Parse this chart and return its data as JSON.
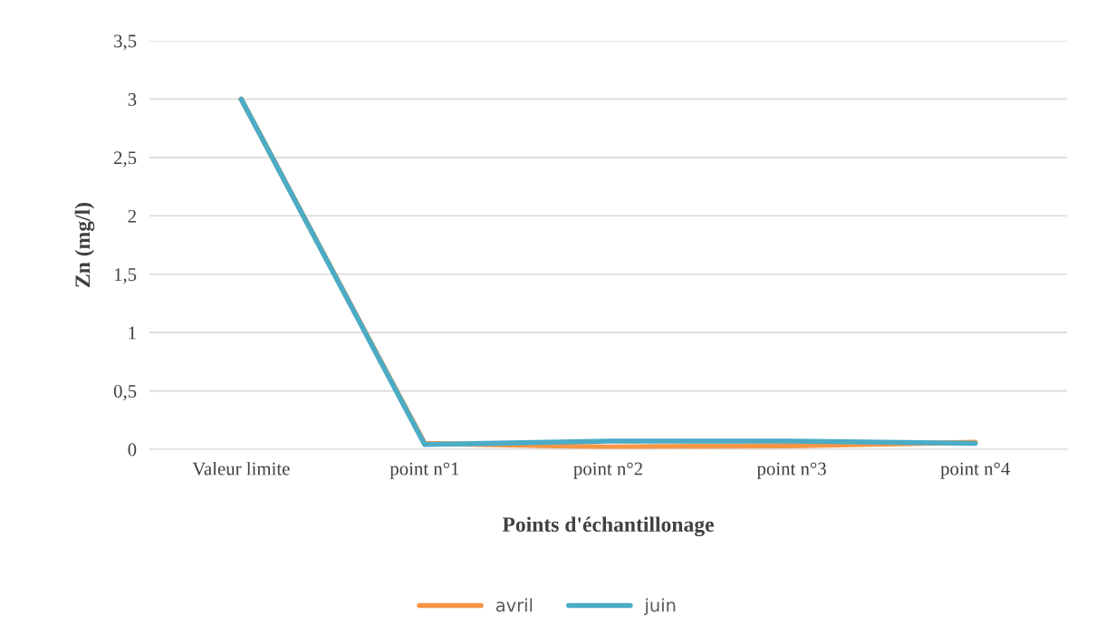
{
  "chart_data": {
    "type": "line",
    "xlabel": "Points d'échantillonage",
    "ylabel": "Zn (mg/l)",
    "categories": [
      "Valeur limite",
      "point n°1",
      "point n°2",
      "point n°3",
      "point n°4"
    ],
    "series": [
      {
        "name": "avril",
        "color": "#f79646",
        "values": [
          3,
          0.05,
          0.02,
          0.03,
          0.06
        ]
      },
      {
        "name": "juin",
        "color": "#4bacc6",
        "values": [
          3,
          0.04,
          0.07,
          0.07,
          0.05
        ]
      }
    ],
    "ylim": [
      0,
      3.5
    ],
    "yticks": [
      {
        "value": 0,
        "label": "0"
      },
      {
        "value": 0.5,
        "label": "0,5"
      },
      {
        "value": 1,
        "label": "1"
      },
      {
        "value": 1.5,
        "label": "1,5"
      },
      {
        "value": 2,
        "label": "2"
      },
      {
        "value": 2.5,
        "label": "2,5"
      },
      {
        "value": 3,
        "label": "3"
      },
      {
        "value": 3.5,
        "label": "3,5"
      }
    ],
    "grid": "y",
    "legend": "bottom",
    "marker": "none",
    "line_style": "solid"
  }
}
